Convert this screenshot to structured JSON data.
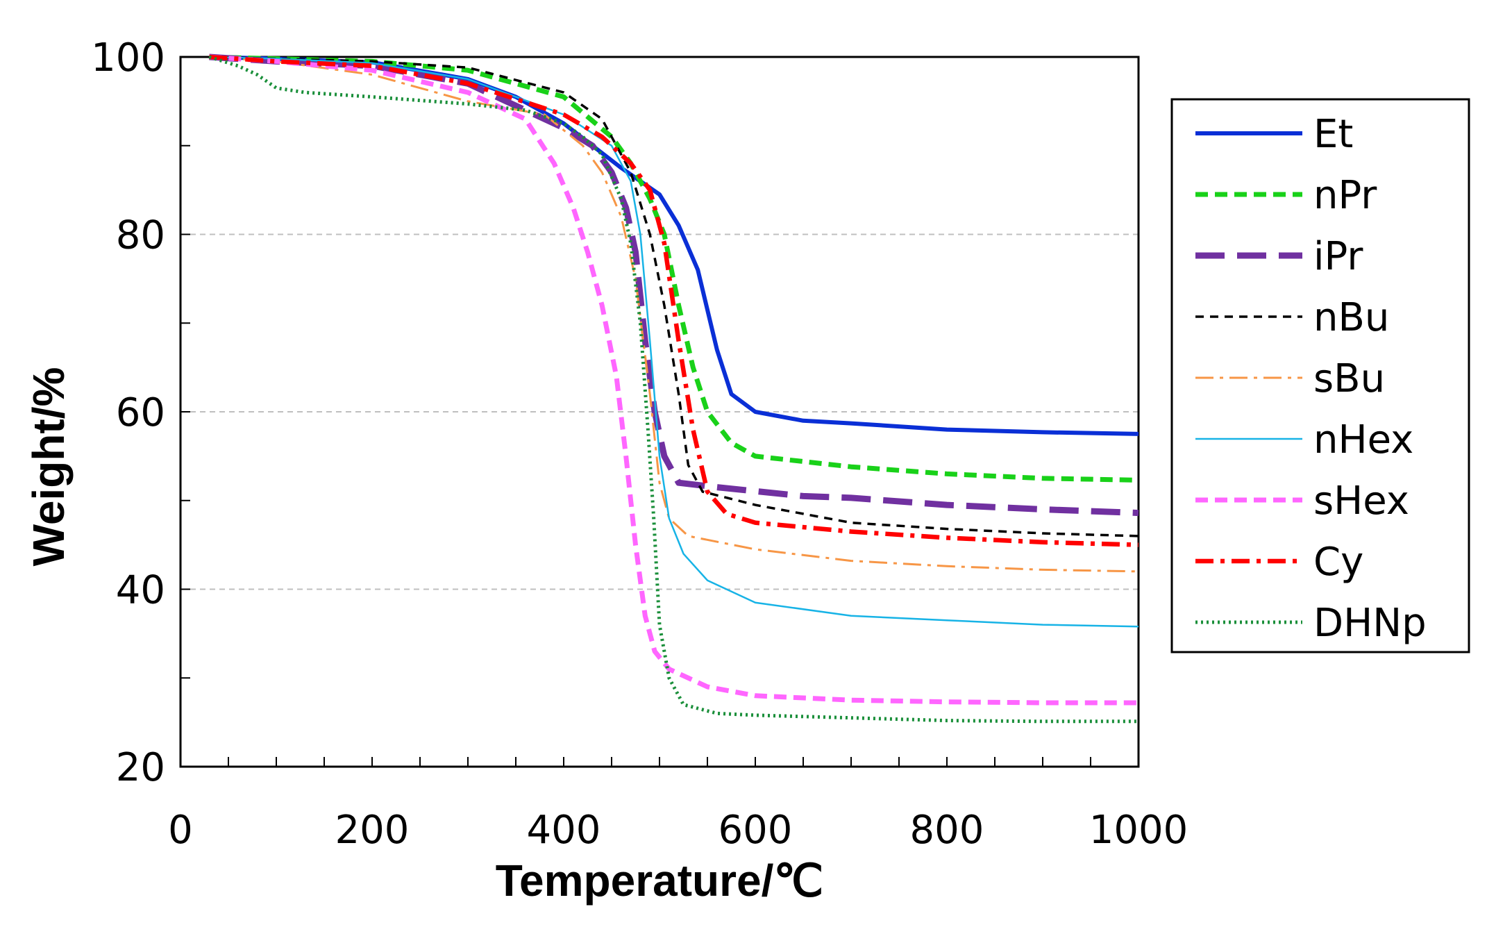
{
  "chart_data": {
    "type": "line",
    "title": "",
    "xlabel": "Temperature/",
    "xlabel_unit": "℃",
    "ylabel": "Weight/%",
    "xlim": [
      0,
      1000
    ],
    "ylim": [
      20,
      100
    ],
    "x_ticks": [
      0,
      200,
      400,
      600,
      800,
      1000
    ],
    "x_minor_step": 50,
    "y_ticks": [
      20,
      40,
      60,
      80,
      100
    ],
    "y_minor_step": 10,
    "grid": "horizontal dashed at 40, 60, 80",
    "legend_position": "right",
    "series": [
      {
        "name": "Et",
        "color": "#0a2fd6",
        "style": "solid-thick",
        "points": [
          [
            30,
            100
          ],
          [
            100,
            99.8
          ],
          [
            200,
            99.4
          ],
          [
            300,
            97.5
          ],
          [
            350,
            95.5
          ],
          [
            400,
            92.5
          ],
          [
            430,
            90
          ],
          [
            460,
            87.5
          ],
          [
            480,
            86
          ],
          [
            500,
            84.5
          ],
          [
            520,
            81
          ],
          [
            540,
            76
          ],
          [
            560,
            67
          ],
          [
            575,
            62
          ],
          [
            600,
            60
          ],
          [
            650,
            59
          ],
          [
            700,
            58.7
          ],
          [
            800,
            58
          ],
          [
            900,
            57.7
          ],
          [
            1000,
            57.5
          ]
        ]
      },
      {
        "name": "nPr",
        "color": "#19d119",
        "style": "dashed-thick",
        "points": [
          [
            30,
            100
          ],
          [
            100,
            99.8
          ],
          [
            200,
            99.5
          ],
          [
            300,
            98.5
          ],
          [
            400,
            95.5
          ],
          [
            450,
            91
          ],
          [
            470,
            88
          ],
          [
            490,
            84
          ],
          [
            505,
            80
          ],
          [
            520,
            72
          ],
          [
            535,
            65
          ],
          [
            550,
            60
          ],
          [
            575,
            56.5
          ],
          [
            600,
            55
          ],
          [
            700,
            53.8
          ],
          [
            800,
            53
          ],
          [
            900,
            52.5
          ],
          [
            1000,
            52.3
          ]
        ]
      },
      {
        "name": "iPr",
        "color": "#7030a0",
        "style": "longdash-thick",
        "points": [
          [
            30,
            100
          ],
          [
            100,
            99.5
          ],
          [
            200,
            99
          ],
          [
            300,
            97
          ],
          [
            400,
            92
          ],
          [
            430,
            90
          ],
          [
            450,
            87
          ],
          [
            465,
            83
          ],
          [
            475,
            78
          ],
          [
            485,
            68
          ],
          [
            495,
            60
          ],
          [
            505,
            55
          ],
          [
            520,
            52
          ],
          [
            560,
            51.5
          ],
          [
            650,
            50.5
          ],
          [
            700,
            50.3
          ],
          [
            800,
            49.5
          ],
          [
            900,
            49
          ],
          [
            1000,
            48.6
          ]
        ]
      },
      {
        "name": "nBu",
        "color": "#000000",
        "style": "dashed-thin",
        "points": [
          [
            30,
            100
          ],
          [
            100,
            99.8
          ],
          [
            200,
            99.5
          ],
          [
            300,
            98.8
          ],
          [
            400,
            96
          ],
          [
            440,
            93
          ],
          [
            470,
            87
          ],
          [
            490,
            80
          ],
          [
            505,
            72
          ],
          [
            520,
            62
          ],
          [
            530,
            54
          ],
          [
            545,
            51
          ],
          [
            600,
            49.5
          ],
          [
            700,
            47.5
          ],
          [
            800,
            46.8
          ],
          [
            900,
            46.3
          ],
          [
            1000,
            46
          ]
        ]
      },
      {
        "name": "sBu",
        "color": "#f79646",
        "style": "dashdot-thin",
        "points": [
          [
            30,
            100
          ],
          [
            100,
            99.5
          ],
          [
            200,
            98
          ],
          [
            300,
            95
          ],
          [
            380,
            93.5
          ],
          [
            420,
            90
          ],
          [
            440,
            87
          ],
          [
            460,
            82
          ],
          [
            475,
            75
          ],
          [
            490,
            62
          ],
          [
            500,
            52
          ],
          [
            510,
            48
          ],
          [
            530,
            46
          ],
          [
            600,
            44.5
          ],
          [
            700,
            43.2
          ],
          [
            800,
            42.6
          ],
          [
            900,
            42.2
          ],
          [
            1000,
            42
          ]
        ]
      },
      {
        "name": "nHex",
        "color": "#17b3e6",
        "style": "solid-thin",
        "points": [
          [
            30,
            100
          ],
          [
            100,
            99.8
          ],
          [
            200,
            99.3
          ],
          [
            300,
            97.5
          ],
          [
            400,
            93.5
          ],
          [
            450,
            90
          ],
          [
            470,
            86
          ],
          [
            480,
            80
          ],
          [
            490,
            68
          ],
          [
            500,
            55
          ],
          [
            510,
            48
          ],
          [
            525,
            44
          ],
          [
            550,
            41
          ],
          [
            600,
            38.5
          ],
          [
            700,
            37
          ],
          [
            800,
            36.5
          ],
          [
            900,
            36
          ],
          [
            1000,
            35.8
          ]
        ]
      },
      {
        "name": "sHex",
        "color": "#ff66ff",
        "style": "dashed-thick",
        "points": [
          [
            30,
            100
          ],
          [
            100,
            99.5
          ],
          [
            200,
            98.5
          ],
          [
            300,
            96
          ],
          [
            360,
            93
          ],
          [
            390,
            88
          ],
          [
            410,
            83
          ],
          [
            425,
            78
          ],
          [
            440,
            72
          ],
          [
            455,
            64
          ],
          [
            465,
            55
          ],
          [
            475,
            45
          ],
          [
            485,
            37
          ],
          [
            495,
            33
          ],
          [
            510,
            31
          ],
          [
            550,
            29
          ],
          [
            600,
            28
          ],
          [
            700,
            27.5
          ],
          [
            800,
            27.3
          ],
          [
            900,
            27.2
          ],
          [
            1000,
            27.2
          ]
        ]
      },
      {
        "name": "Cy",
        "color": "#ff0000",
        "style": "dashdot-thick",
        "points": [
          [
            30,
            100
          ],
          [
            100,
            99.5
          ],
          [
            200,
            99
          ],
          [
            300,
            97
          ],
          [
            400,
            93.5
          ],
          [
            440,
            91
          ],
          [
            470,
            88
          ],
          [
            490,
            85
          ],
          [
            505,
            79
          ],
          [
            520,
            68
          ],
          [
            535,
            58
          ],
          [
            550,
            51
          ],
          [
            570,
            48.5
          ],
          [
            600,
            47.5
          ],
          [
            700,
            46.5
          ],
          [
            800,
            45.8
          ],
          [
            900,
            45.3
          ],
          [
            1000,
            45
          ]
        ]
      },
      {
        "name": "DHNp",
        "color": "#1a8f3a",
        "style": "dotted",
        "points": [
          [
            30,
            100
          ],
          [
            60,
            99
          ],
          [
            80,
            98
          ],
          [
            100,
            96.5
          ],
          [
            130,
            96
          ],
          [
            200,
            95.5
          ],
          [
            300,
            94.7
          ],
          [
            360,
            94
          ],
          [
            400,
            92.5
          ],
          [
            420,
            91
          ],
          [
            440,
            89
          ],
          [
            460,
            84
          ],
          [
            470,
            79
          ],
          [
            480,
            70
          ],
          [
            488,
            58
          ],
          [
            494,
            48
          ],
          [
            500,
            36
          ],
          [
            510,
            30
          ],
          [
            525,
            27
          ],
          [
            560,
            26
          ],
          [
            600,
            25.8
          ],
          [
            700,
            25.5
          ],
          [
            800,
            25.2
          ],
          [
            900,
            25.1
          ],
          [
            1000,
            25.1
          ]
        ]
      }
    ]
  }
}
